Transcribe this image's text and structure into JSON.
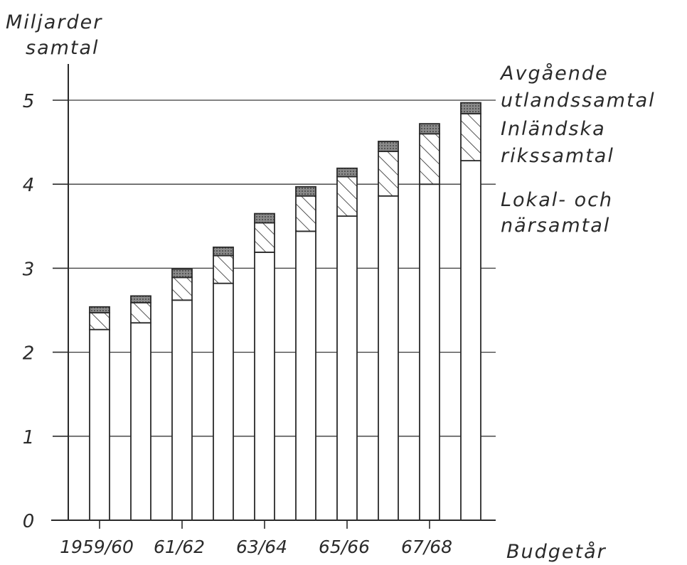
{
  "chart_data": {
    "type": "bar",
    "stacked": true,
    "ylabel_lines": [
      "Miljarder",
      "samtal"
    ],
    "xlabel": "Budgetår",
    "ylim": [
      0,
      5
    ],
    "yticks": [
      0,
      1,
      2,
      3,
      4,
      5
    ],
    "ytick_labels": [
      "0",
      "1",
      "2",
      "3",
      "4",
      "5"
    ],
    "xtick_labels": [
      "1959/60",
      "61/62",
      "63/64",
      "65/66",
      "67/68"
    ],
    "xtick_positions": [
      0,
      2,
      4,
      6,
      8
    ],
    "grid": true,
    "legend_position": "top-right",
    "bar_count": 10,
    "series": [
      {
        "name": "Lokal- och närsamtal",
        "legend_lines": [
          "Lokal- och",
          "närsamtal"
        ],
        "fill": "plain",
        "values": [
          2.27,
          2.35,
          2.62,
          2.82,
          3.19,
          3.44,
          3.62,
          3.86,
          4.0,
          4.28
        ]
      },
      {
        "name": "Inländska rikssamtal",
        "legend_lines": [
          "Inländska",
          "rikssamtal"
        ],
        "fill": "hatched",
        "values": [
          0.2,
          0.24,
          0.27,
          0.33,
          0.35,
          0.42,
          0.47,
          0.53,
          0.6,
          0.56
        ]
      },
      {
        "name": "Avgående utlandssamtal",
        "legend_lines": [
          "Avgående",
          "utlandssamtal"
        ],
        "fill": "dark",
        "values": [
          0.07,
          0.08,
          0.1,
          0.1,
          0.11,
          0.11,
          0.1,
          0.12,
          0.12,
          0.13
        ]
      }
    ]
  },
  "colors": {
    "ink": "#2a2a2a",
    "grid": "#3a3a3a",
    "dark_fill": "#7a7a7a"
  }
}
